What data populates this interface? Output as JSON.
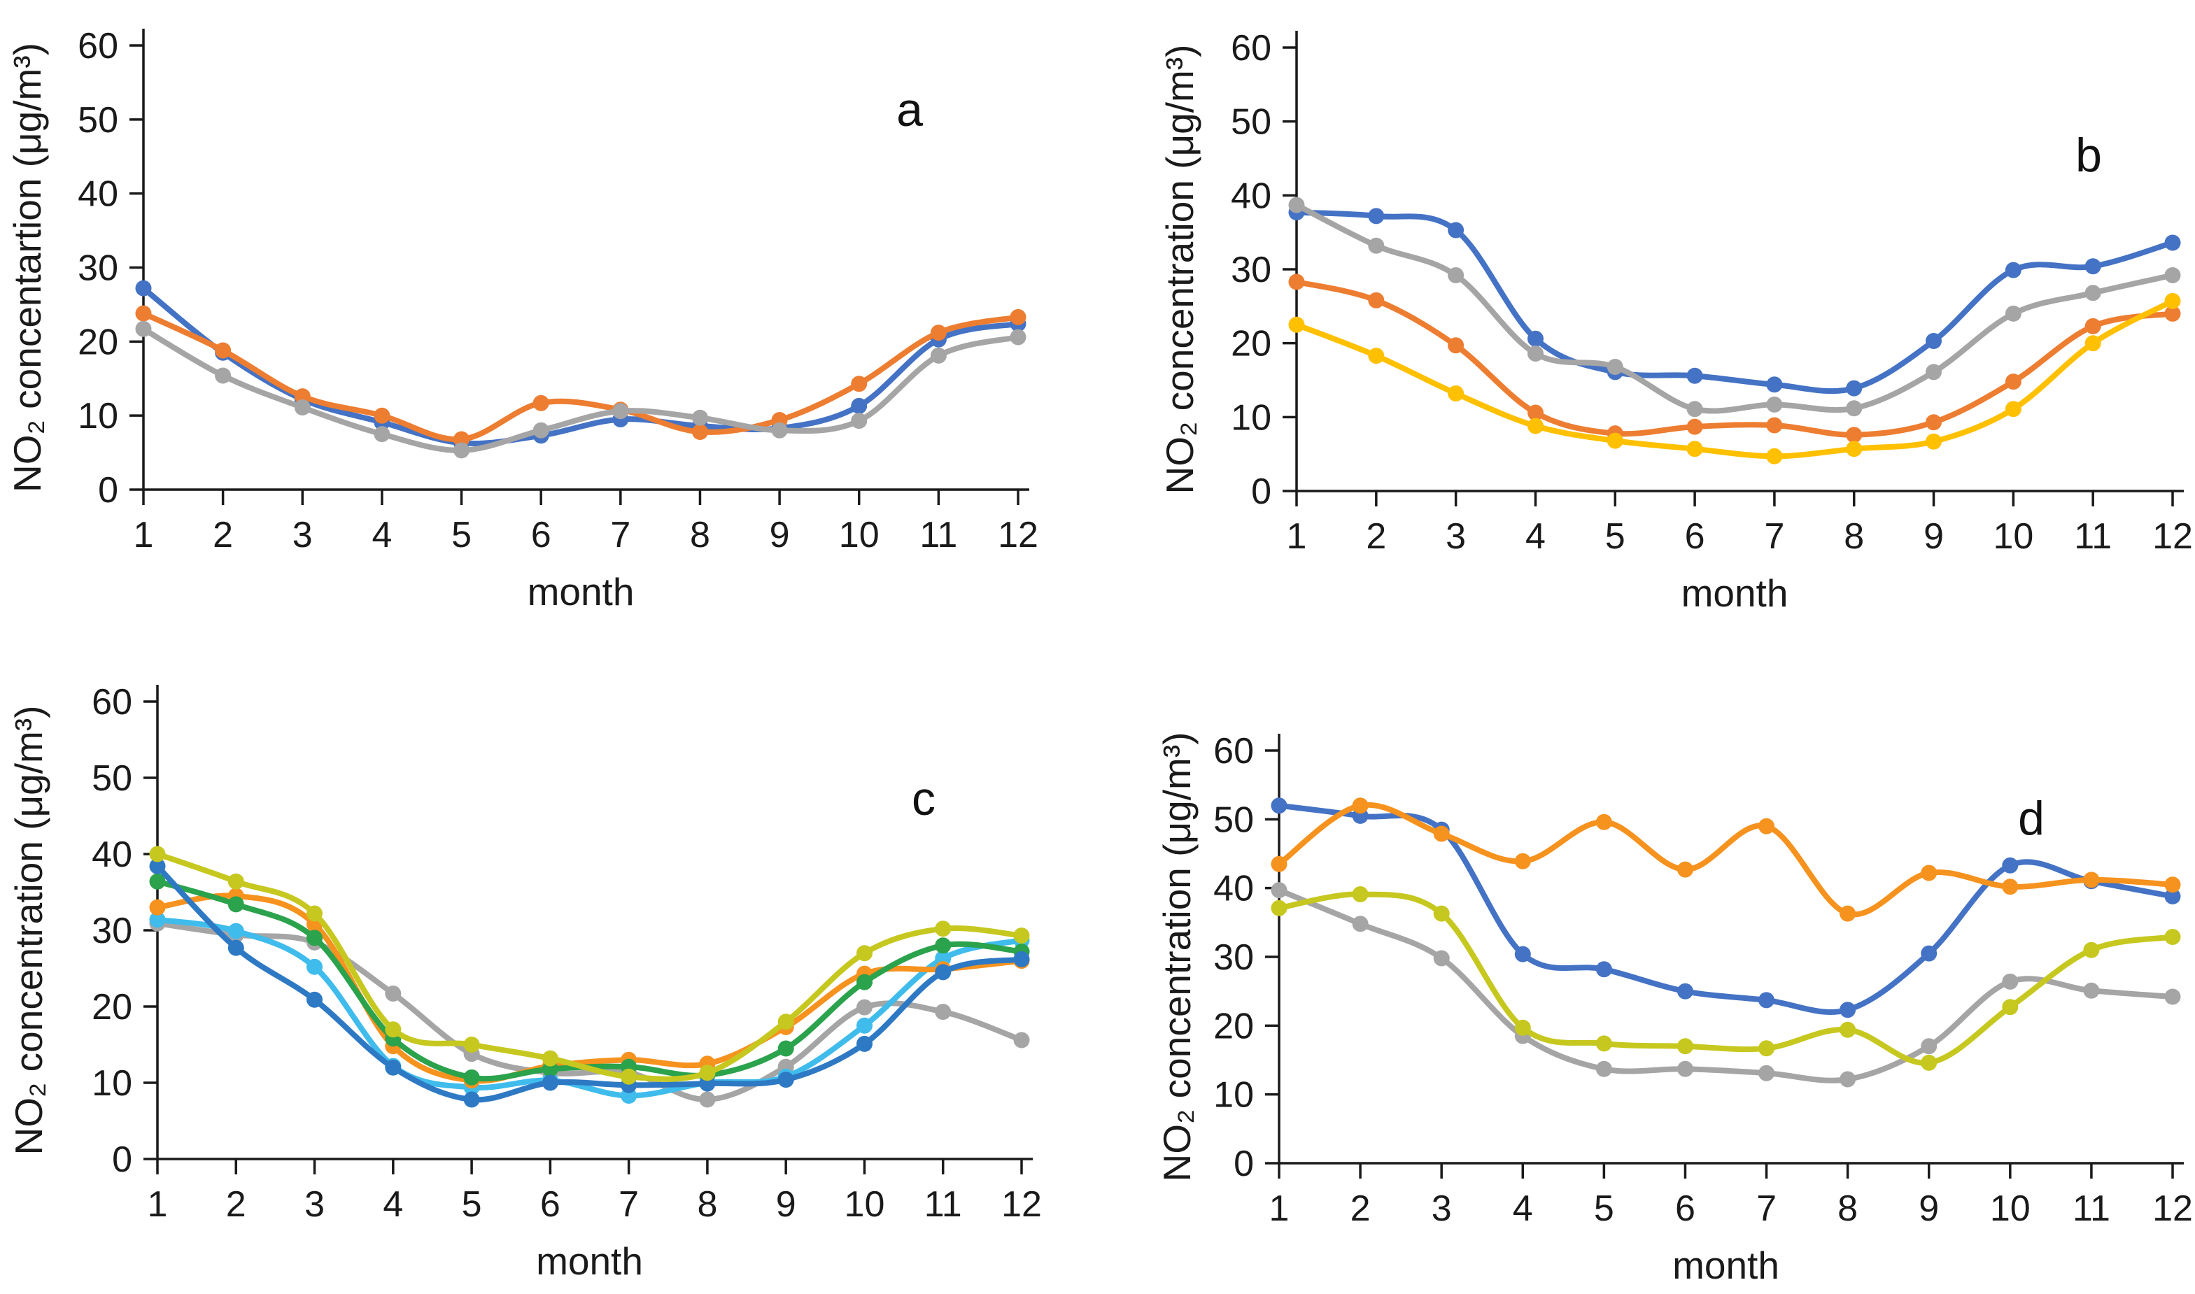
{
  "page": {
    "background": "#ffffff",
    "axis_color": "#1a1a1a",
    "description": "Four-panel line figure of monthly NO2 concentration"
  },
  "chart_data": [
    {
      "id": "a",
      "type": "line",
      "letter": "a",
      "ylabel": "NO₂ concentartion (μg/m³)",
      "xlabel": "month",
      "ylim": [
        0,
        60
      ],
      "y_ticks": [
        0,
        10,
        20,
        30,
        40,
        50,
        60
      ],
      "categories": [
        1,
        2,
        3,
        4,
        5,
        6,
        7,
        8,
        9,
        10,
        11,
        12
      ],
      "grid": false,
      "legend": "none",
      "series": [
        {
          "name": "blue",
          "color": "#4472C4",
          "values": [
            27.2,
            18.5,
            12.2,
            9.1,
            6.3,
            7.3,
            9.5,
            8.6,
            8.3,
            11.3,
            20.3,
            22.4
          ]
        },
        {
          "name": "orange",
          "color": "#ED7D31",
          "values": [
            23.8,
            18.8,
            12.6,
            10.0,
            6.8,
            11.7,
            10.8,
            7.8,
            9.4,
            14.3,
            21.2,
            23.3
          ]
        },
        {
          "name": "gray",
          "color": "#A5A5A5",
          "values": [
            21.7,
            15.4,
            11.1,
            7.5,
            5.3,
            8.0,
            10.6,
            9.7,
            8.0,
            9.3,
            18.1,
            20.6
          ]
        }
      ]
    },
    {
      "id": "b",
      "type": "line",
      "letter": "b",
      "ylabel": "NO₂ concentration (μg/m³)",
      "xlabel": "month",
      "ylim": [
        0,
        60
      ],
      "y_ticks": [
        0,
        10,
        20,
        30,
        40,
        50,
        60
      ],
      "categories": [
        1,
        2,
        3,
        4,
        5,
        6,
        7,
        8,
        9,
        10,
        11,
        12
      ],
      "grid": false,
      "legend": "none",
      "series": [
        {
          "name": "blue",
          "color": "#4472C4",
          "values": [
            37.7,
            37.2,
            35.3,
            20.6,
            16.1,
            15.6,
            14.4,
            13.9,
            20.3,
            29.9,
            30.4,
            33.6
          ]
        },
        {
          "name": "gray",
          "color": "#A5A5A5",
          "values": [
            38.7,
            33.2,
            29.2,
            18.6,
            16.8,
            11.1,
            11.7,
            11.2,
            16.1,
            24.0,
            26.8,
            29.2
          ]
        },
        {
          "name": "orange",
          "color": "#ED7D31",
          "values": [
            28.3,
            25.8,
            19.7,
            10.6,
            7.8,
            8.7,
            8.9,
            7.6,
            9.3,
            14.8,
            22.3,
            24.0
          ]
        },
        {
          "name": "yellow",
          "color": "#FFC000",
          "values": [
            22.5,
            18.3,
            13.2,
            8.8,
            6.8,
            5.7,
            4.7,
            5.7,
            6.7,
            11.1,
            20.0,
            25.7
          ]
        }
      ]
    },
    {
      "id": "c",
      "type": "line",
      "letter": "c",
      "ylabel": "NO₂ concentration (μg/m³)",
      "xlabel": "month",
      "ylim": [
        0,
        60
      ],
      "y_ticks": [
        0,
        10,
        20,
        30,
        40,
        50,
        60
      ],
      "categories": [
        1,
        2,
        3,
        4,
        5,
        6,
        7,
        8,
        9,
        10,
        11,
        12
      ],
      "grid": false,
      "legend": "none",
      "series": [
        {
          "name": "gray",
          "color": "#A5A5A5",
          "values": [
            30.9,
            29.4,
            28.4,
            21.7,
            13.8,
            11.3,
            11.3,
            7.8,
            12.1,
            19.9,
            19.3,
            15.6
          ]
        },
        {
          "name": "light-blue",
          "color": "#3FBCEC",
          "values": [
            31.4,
            29.9,
            25.2,
            12.2,
            9.4,
            10.3,
            8.3,
            10.0,
            10.8,
            17.5,
            26.3,
            28.7
          ]
        },
        {
          "name": "orange",
          "color": "#F6921E",
          "values": [
            33.0,
            34.5,
            30.8,
            14.8,
            10.3,
            12.2,
            13.0,
            12.5,
            17.3,
            24.3,
            24.9,
            26.0
          ]
        },
        {
          "name": "green",
          "color": "#2BA24C",
          "values": [
            36.4,
            33.4,
            29.0,
            15.8,
            10.7,
            11.8,
            12.1,
            11.0,
            14.5,
            23.2,
            28.0,
            27.2
          ]
        },
        {
          "name": "dark-blue",
          "color": "#2E79C4",
          "values": [
            38.4,
            27.7,
            20.9,
            12.0,
            7.8,
            10.0,
            9.7,
            9.9,
            10.4,
            15.1,
            24.5,
            26.2
          ]
        },
        {
          "name": "olive",
          "color": "#C6C81F",
          "values": [
            40.0,
            36.4,
            32.2,
            17.0,
            15.0,
            13.2,
            10.8,
            11.3,
            18.0,
            27.0,
            30.2,
            29.3
          ]
        }
      ]
    },
    {
      "id": "d",
      "type": "line",
      "letter": "d",
      "ylabel": "NO₂ concentration (μg/m³)",
      "xlabel": "month",
      "ylim": [
        0,
        60
      ],
      "y_ticks": [
        0,
        10,
        20,
        30,
        40,
        50,
        60
      ],
      "categories": [
        1,
        2,
        3,
        4,
        5,
        6,
        7,
        8,
        9,
        10,
        11,
        12
      ],
      "grid": false,
      "legend": "none",
      "series": [
        {
          "name": "blue",
          "color": "#4472C4",
          "values": [
            52.0,
            50.5,
            48.5,
            30.4,
            28.2,
            25.0,
            23.7,
            22.3,
            30.5,
            43.3,
            41.0,
            38.8
          ]
        },
        {
          "name": "gray",
          "color": "#A5A5A5",
          "values": [
            39.7,
            34.8,
            29.8,
            18.5,
            13.7,
            13.7,
            13.1,
            12.2,
            17.0,
            26.4,
            25.1,
            24.2
          ]
        },
        {
          "name": "olive",
          "color": "#C6C81F",
          "values": [
            37.1,
            39.1,
            36.3,
            19.7,
            17.4,
            17.0,
            16.7,
            19.4,
            14.6,
            22.7,
            31.0,
            32.9
          ]
        },
        {
          "name": "orange",
          "color": "#F6921E",
          "values": [
            43.5,
            52.0,
            47.9,
            43.9,
            49.6,
            42.7,
            49.0,
            36.3,
            42.2,
            40.2,
            41.2,
            40.5
          ]
        }
      ]
    }
  ]
}
